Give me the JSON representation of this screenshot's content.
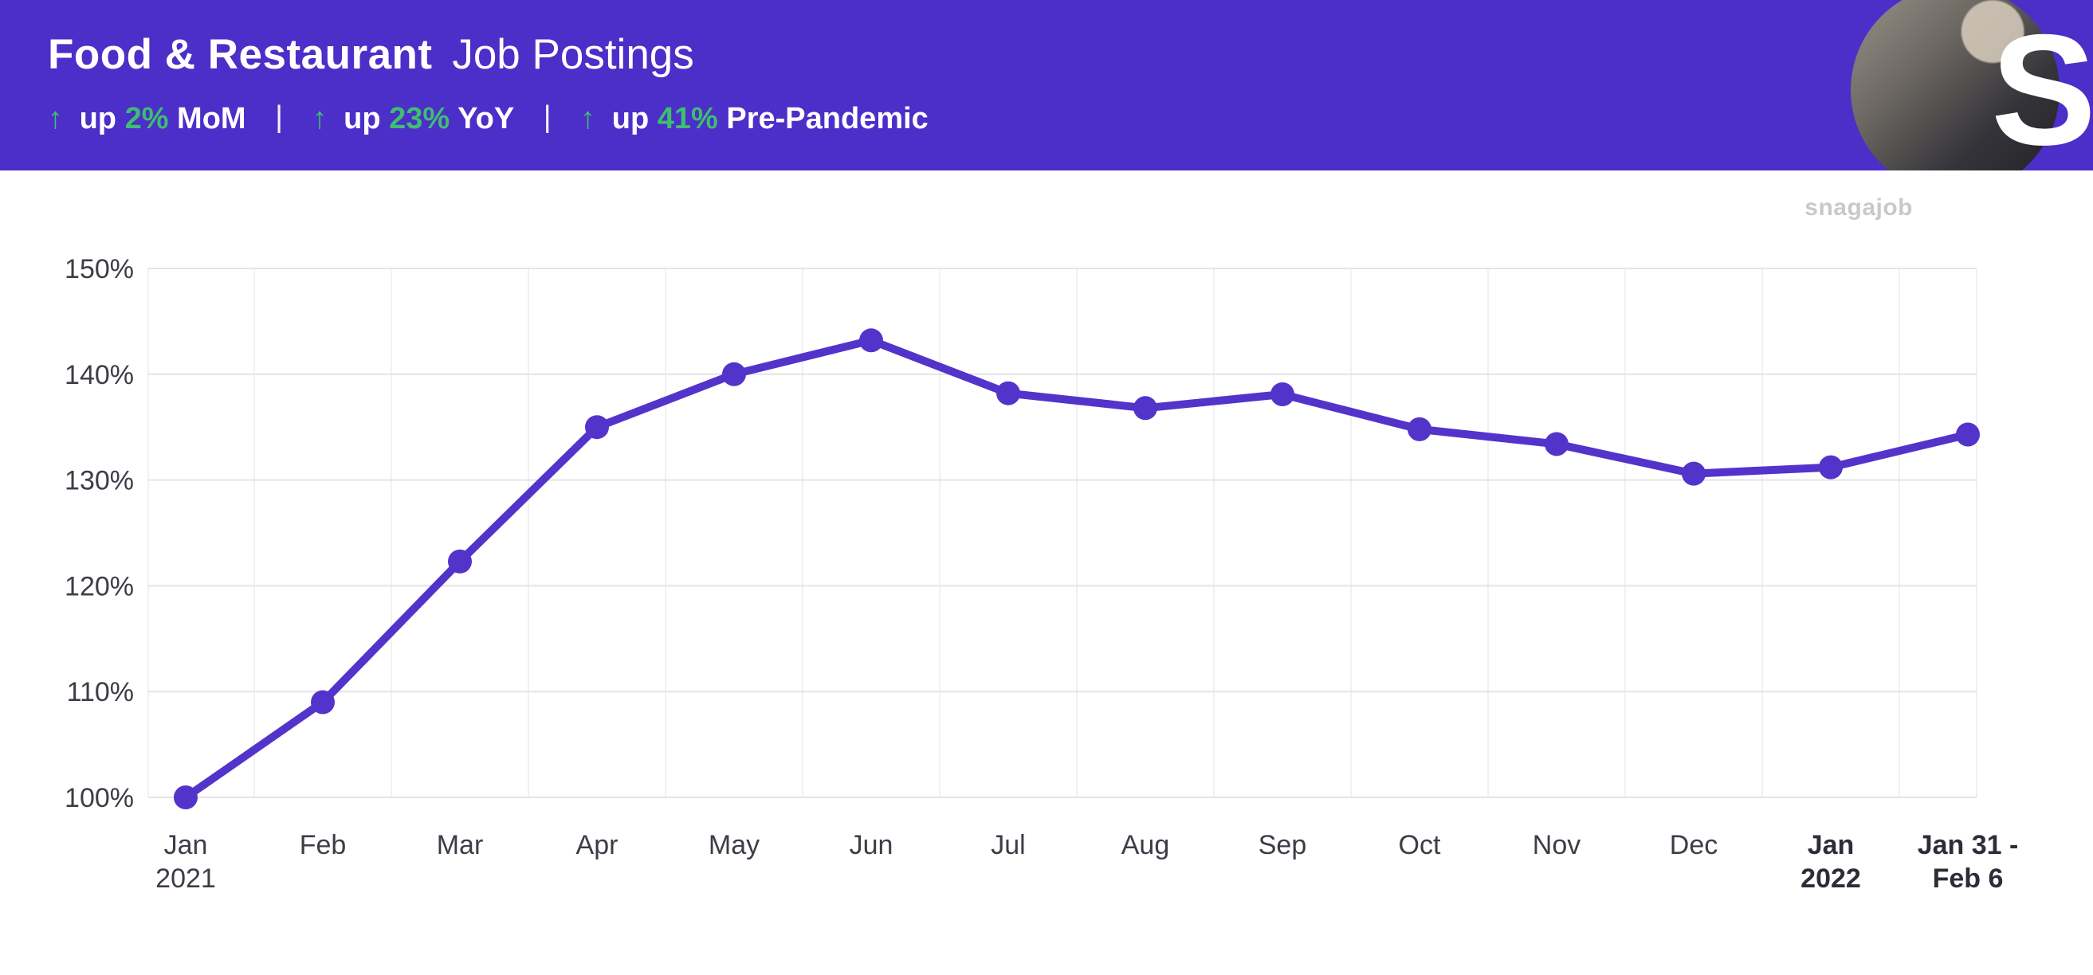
{
  "header": {
    "title_bold": "Food & Restaurant",
    "title_regular": "Job Postings",
    "divider": "|",
    "logo_letter": "S",
    "stats": [
      {
        "arrow": "↑",
        "prefix": "up",
        "value": "2%",
        "suffix": "MoM"
      },
      {
        "arrow": "↑",
        "prefix": "up",
        "value": "23%",
        "suffix": "YoY"
      },
      {
        "arrow": "↑",
        "prefix": "up",
        "value": "41%",
        "suffix": "Pre-Pandemic"
      }
    ],
    "colors": {
      "banner": "#4B2FC8",
      "green": "#3EBE70"
    }
  },
  "watermark": "snagajob",
  "chart_data": {
    "type": "line",
    "title": "Food & Restaurant Job Postings",
    "categories": [
      [
        "Jan",
        "2021"
      ],
      [
        "Feb"
      ],
      [
        "Mar"
      ],
      [
        "Apr"
      ],
      [
        "May"
      ],
      [
        "Jun"
      ],
      [
        "Jul"
      ],
      [
        "Aug"
      ],
      [
        "Sep"
      ],
      [
        "Oct"
      ],
      [
        "Nov"
      ],
      [
        "Dec"
      ],
      [
        "Jan",
        "2022"
      ],
      [
        "Jan 31 -",
        "Feb 6"
      ]
    ],
    "values": [
      100,
      109,
      122.3,
      135,
      140,
      143.2,
      138.2,
      136.8,
      138.1,
      134.8,
      133.4,
      130.6,
      131.2,
      134.3
    ],
    "bold_category_indexes": [
      12,
      13
    ],
    "y_ticks": [
      "100%",
      "110%",
      "120%",
      "130%",
      "140%",
      "150%"
    ],
    "ylim": [
      100,
      150
    ],
    "line_color": "#5234CB",
    "grid": true,
    "legend": "none",
    "xlabel": "",
    "ylabel": ""
  }
}
